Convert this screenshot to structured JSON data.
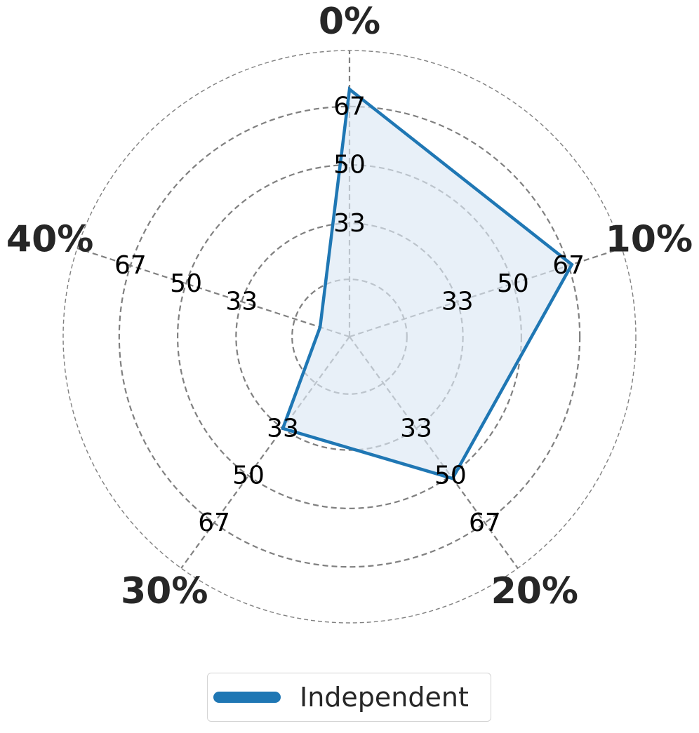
{
  "chart_data": {
    "type": "radar",
    "categories": [
      "0%",
      "10%",
      "20%",
      "30%",
      "40%"
    ],
    "radial_tick_labels": [
      "33",
      "50",
      "67"
    ],
    "radial_ticks": [
      16.7,
      33,
      50,
      67,
      83.3
    ],
    "r_max": 83.3,
    "grid": true,
    "legend_position": "bottom-center",
    "series": [
      {
        "name": "Independent",
        "values": [
          72,
          68,
          51,
          33,
          9
        ],
        "color": "#1f77b4",
        "fill_color": "#dce8f4"
      }
    ]
  },
  "colors": {
    "grid": "#808080",
    "category_label": "#262626",
    "tick_label": "#000000"
  }
}
